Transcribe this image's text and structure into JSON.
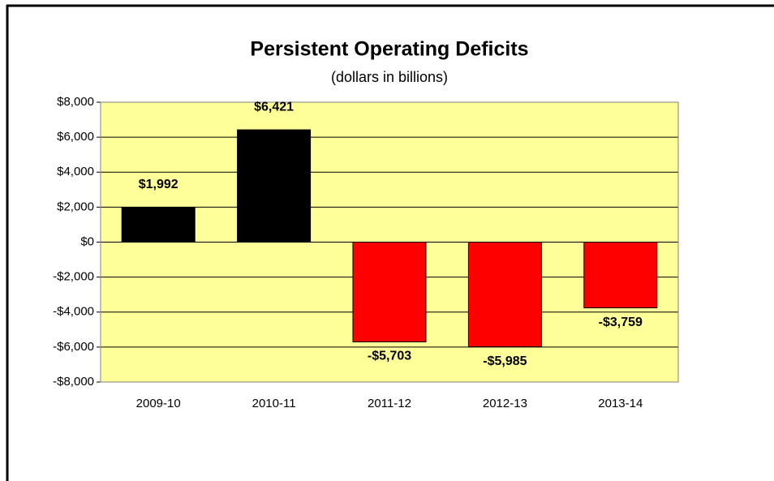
{
  "chart_data": {
    "type": "bar",
    "title": "Persistent Operating Deficits",
    "subtitle": "(dollars in billions)",
    "categories": [
      "2009-10",
      "2010-11",
      "2011-12",
      "2012-13",
      "2013-14"
    ],
    "values": [
      1992,
      6421,
      -5703,
      -5985,
      -3759
    ],
    "value_labels": [
      "$1,992",
      "$6,421",
      "-$5,703",
      "-$5,985",
      "-$3,759"
    ],
    "colors": [
      "#000000",
      "#000000",
      "#ff0000",
      "#ff0000",
      "#ff0000"
    ],
    "plot_background": "#ffff99",
    "ylim": [
      -8000,
      8000
    ],
    "yticks": [
      {
        "value": -8000,
        "label": "-$8,000"
      },
      {
        "value": -6000,
        "label": "-$6,000"
      },
      {
        "value": -4000,
        "label": "-$4,000"
      },
      {
        "value": -2000,
        "label": "-$2,000"
      },
      {
        "value": 0,
        "label": "$0"
      },
      {
        "value": 2000,
        "label": "$2,000"
      },
      {
        "value": 4000,
        "label": "$4,000"
      },
      {
        "value": 6000,
        "label": "$6,000"
      },
      {
        "value": 8000,
        "label": "$8,000"
      }
    ],
    "grid": true
  }
}
